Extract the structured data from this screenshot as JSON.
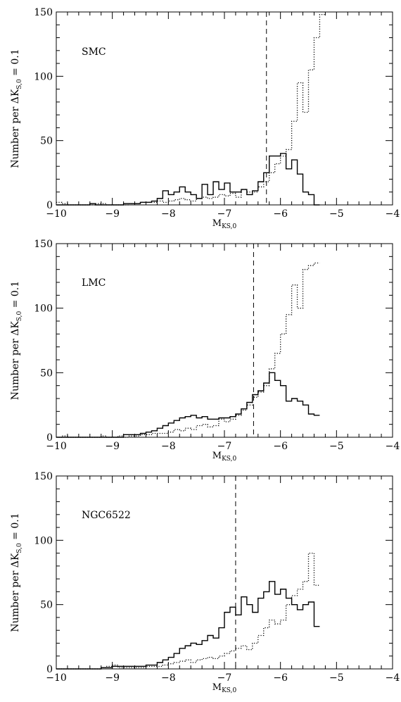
{
  "figure": {
    "background": "#ffffff",
    "line_color": "#000000"
  },
  "chart_data": [
    {
      "type": "line",
      "panel_label": "SMC",
      "xlabel": {
        "main": "M",
        "sub": "KS,0"
      },
      "ylabel": {
        "prefix": "Number  per  ΔK",
        "sub": "S,0",
        "suffix": "  =  0.1"
      },
      "xlim": [
        -10,
        -4
      ],
      "ylim": [
        0,
        150
      ],
      "xticks": [
        -10,
        -9,
        -8,
        -7,
        -6,
        -5,
        -4
      ],
      "yticks": [
        0,
        50,
        100,
        150
      ],
      "vline": -6.25,
      "series": [
        {
          "style": "solid",
          "bin_start": -10,
          "bin_width": 0.1,
          "values": [
            0,
            0,
            0,
            0,
            0,
            0,
            1,
            0,
            0,
            0,
            0,
            0,
            1,
            1,
            1,
            2,
            2,
            3,
            5,
            11,
            8,
            10,
            14,
            10,
            8,
            5,
            16,
            8,
            18,
            12,
            17,
            10,
            10,
            12,
            8,
            11,
            18,
            25,
            38,
            38,
            40,
            28,
            35,
            24,
            10,
            8,
            0
          ]
        },
        {
          "style": "dotted",
          "bin_start": -10,
          "bin_width": 0.1,
          "values": [
            2,
            1,
            0,
            0,
            0,
            0,
            0,
            1,
            1,
            0,
            0,
            0,
            0,
            1,
            1,
            2,
            2,
            2,
            3,
            2,
            3,
            4,
            5,
            4,
            3,
            5,
            6,
            5,
            6,
            8,
            7,
            9,
            6,
            12,
            10,
            10,
            14,
            18,
            25,
            32,
            38,
            43,
            65,
            95,
            72,
            105,
            130,
            148
          ]
        }
      ]
    },
    {
      "type": "line",
      "panel_label": "LMC",
      "xlabel": {
        "main": "M",
        "sub": "KS,0"
      },
      "ylabel": {
        "prefix": "Number  per  ΔK",
        "sub": "S,0",
        "suffix": "  =  0.1"
      },
      "xlim": [
        -10,
        -4
      ],
      "ylim": [
        0,
        150
      ],
      "xticks": [
        -10,
        -9,
        -8,
        -7,
        -6,
        -5,
        -4
      ],
      "yticks": [
        0,
        50,
        100,
        150
      ],
      "vline": -6.48,
      "series": [
        {
          "style": "solid",
          "bin_start": -10,
          "bin_width": 0.1,
          "values": [
            0,
            0,
            0,
            0,
            0,
            0,
            0,
            0,
            0,
            0,
            0,
            0,
            2,
            2,
            2,
            3,
            4,
            5,
            7,
            9,
            11,
            13,
            15,
            16,
            17,
            15,
            16,
            14,
            14,
            15,
            15,
            16,
            18,
            22,
            27,
            33,
            36,
            42,
            50,
            44,
            40,
            28,
            30,
            28,
            25,
            18,
            17
          ]
        },
        {
          "style": "dotted",
          "bin_start": -10,
          "bin_width": 0.1,
          "values": [
            0,
            1,
            0,
            0,
            0,
            0,
            0,
            0,
            1,
            0,
            0,
            1,
            0,
            1,
            1,
            2,
            2,
            3,
            3,
            3,
            4,
            6,
            5,
            7,
            6,
            9,
            10,
            8,
            9,
            14,
            12,
            14,
            17,
            21,
            25,
            31,
            35,
            40,
            53,
            65,
            80,
            95,
            118,
            100,
            130,
            133,
            135
          ]
        }
      ]
    },
    {
      "type": "line",
      "panel_label": "NGC6522",
      "xlabel": {
        "main": "M",
        "sub": "KS,0"
      },
      "ylabel": {
        "prefix": "Number  per  ΔK",
        "sub": "S,0",
        "suffix": "  =  0.1"
      },
      "xlim": [
        -10,
        -4
      ],
      "ylim": [
        0,
        150
      ],
      "xticks": [
        -10,
        -9,
        -8,
        -7,
        -6,
        -5,
        -4
      ],
      "yticks": [
        0,
        50,
        100,
        150
      ],
      "vline": -6.8,
      "series": [
        {
          "style": "solid",
          "bin_start": -10,
          "bin_width": 0.1,
          "values": [
            0,
            0,
            0,
            0,
            0,
            0,
            0,
            0,
            1,
            1,
            2,
            2,
            2,
            2,
            2,
            2,
            3,
            3,
            5,
            7,
            9,
            12,
            16,
            18,
            20,
            19,
            22,
            26,
            24,
            32,
            44,
            48,
            42,
            56,
            50,
            44,
            55,
            60,
            68,
            58,
            62,
            55,
            50,
            46,
            50,
            52,
            33
          ]
        },
        {
          "style": "dotted",
          "bin_start": -10,
          "bin_width": 0.1,
          "values": [
            0,
            0,
            0,
            0,
            0,
            0,
            0,
            0,
            1,
            2,
            3,
            1,
            1,
            1,
            1,
            1,
            2,
            2,
            2,
            3,
            4,
            5,
            6,
            7,
            5,
            7,
            8,
            9,
            8,
            10,
            12,
            14,
            16,
            18,
            15,
            20,
            26,
            32,
            38,
            35,
            38,
            50,
            57,
            62,
            68,
            90,
            65
          ]
        }
      ]
    }
  ]
}
